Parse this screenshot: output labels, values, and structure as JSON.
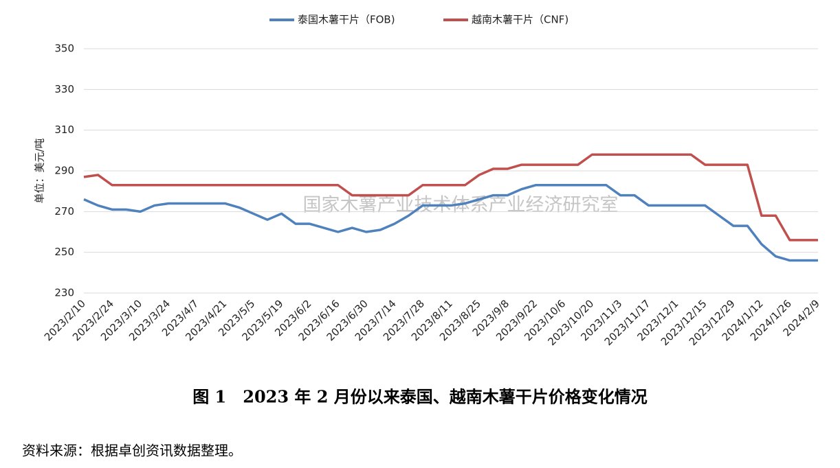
{
  "chart_data": {
    "type": "line",
    "y_label": "单位：美元/吨",
    "watermark": "国家木薯产业技术体系产业经济研究室",
    "caption": "图 1　2023 年 2 月份以来泰国、越南木薯干片价格变化情况",
    "source": "资料来源：根据卓创资讯数据整理。",
    "categories": [
      "2023/2/10",
      null,
      "2023/2/24",
      null,
      "2023/3/10",
      null,
      "2023/3/24",
      null,
      "2023/4/7",
      null,
      "2023/4/21",
      null,
      "2023/5/5",
      null,
      "2023/5/19",
      null,
      "2023/6/2",
      null,
      "2023/6/16",
      null,
      "2023/6/30",
      null,
      "2023/7/14",
      null,
      "2023/7/28",
      null,
      "2023/8/11",
      null,
      "2023/8/25",
      null,
      "2023/9/8",
      null,
      "2023/9/22",
      null,
      "2023/10/6",
      null,
      "2023/10/20",
      null,
      "2023/11/3",
      null,
      "2023/11/17",
      null,
      "2023/12/1",
      null,
      "2023/12/15",
      null,
      "2023/12/29",
      null,
      "2024/1/12",
      null,
      "2024/1/26",
      null,
      "2024/2/9"
    ],
    "series": [
      {
        "name": "泰国木薯干片（FOB)",
        "color": "#4f81bd",
        "values": [
          276,
          273,
          271,
          271,
          270,
          273,
          274,
          274,
          274,
          274,
          274,
          272,
          269,
          266,
          269,
          264,
          264,
          262,
          260,
          262,
          260,
          261,
          264,
          268,
          273,
          273,
          273,
          274,
          276,
          278,
          278,
          281,
          283,
          283,
          283,
          283,
          283,
          283,
          278,
          278,
          273,
          273,
          273,
          273,
          273,
          268,
          263,
          263,
          254,
          248,
          246,
          246,
          246
        ]
      },
      {
        "name": "越南木薯干片（CNF)",
        "color": "#c0504d",
        "values": [
          287,
          288,
          283,
          283,
          283,
          283,
          283,
          283,
          283,
          283,
          283,
          283,
          283,
          283,
          283,
          283,
          283,
          283,
          283,
          278,
          278,
          278,
          278,
          278,
          283,
          283,
          283,
          283,
          288,
          291,
          291,
          293,
          293,
          293,
          293,
          293,
          298,
          298,
          298,
          298,
          298,
          298,
          298,
          298,
          293,
          293,
          293,
          293,
          268,
          268,
          256,
          256,
          256
        ]
      }
    ],
    "ylim": [
      230,
      350
    ],
    "yticks": [
      230,
      250,
      270,
      290,
      310,
      330,
      350
    ],
    "grid": true
  }
}
